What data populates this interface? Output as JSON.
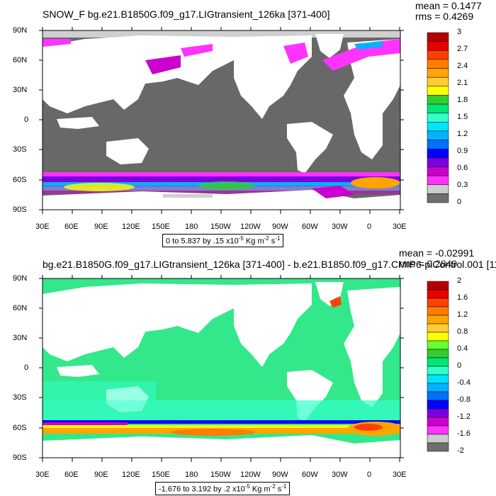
{
  "panels": [
    {
      "title": "SNOW_F bg.e21.B1850G.f09_g17.LIGtransient_126ka [371-400]",
      "mean_text": "mean = 0.1477",
      "rms_text": "rms = 0.4269",
      "range_text_prefix": "0 to 5.837 by .15 x10",
      "range_exp": "-5",
      "range_units": " Kg m",
      "range_units_exp1": "-2",
      "range_units_s": " s",
      "range_units_exp2": "-1",
      "colorbar_labels": [
        "3",
        "2.7",
        "2.4",
        "2.1",
        "1.8",
        "1.5",
        "1.2",
        "0.9",
        "0.6",
        "0.3",
        "0"
      ],
      "colorbar_colors": [
        "#b40000",
        "#e60000",
        "#ff4000",
        "#ff7d00",
        "#ffa500",
        "#ffcc33",
        "#ffff00",
        "#33cc33",
        "#00e676",
        "#33ffcc",
        "#00e5ff",
        "#00b2ff",
        "#0070ff",
        "#0000ff",
        "#7a00e0",
        "#cc00cc",
        "#ff33ff",
        "#cccccc",
        "#6e6e6e"
      ]
    },
    {
      "title": "bg.e21.B1850G.f09_g17.LIGtransient_126ka [371-400] - b.e21.B1850.f09_g17.CMIP6-piControl.001 [11",
      "mean_text": "mean = -0.02991",
      "rms_text": "rms = 0.2849",
      "range_text_prefix": "-1.676 to 3.192 by .2 x10",
      "range_exp": "-5",
      "range_units": " Kg m",
      "range_units_exp1": "-2",
      "range_units_s": " s",
      "range_units_exp2": "-1",
      "colorbar_labels": [
        "2",
        "1.6",
        "1.2",
        "0.8",
        "0.4",
        "0",
        "-0.4",
        "-0.8",
        "-1.2",
        "-1.6",
        "-2"
      ],
      "colorbar_colors": [
        "#b40000",
        "#e60000",
        "#ff4000",
        "#ff7d00",
        "#ffa500",
        "#ffcc33",
        "#ffff00",
        "#66ff33",
        "#33cc33",
        "#00e676",
        "#33ffcc",
        "#00e5ff",
        "#00b2ff",
        "#0070ff",
        "#0000ff",
        "#7a00e0",
        "#cc00cc",
        "#ff33ff",
        "#cccccc",
        "#6e6e6e"
      ]
    }
  ],
  "lat_labels": [
    "90N",
    "60N",
    "30N",
    "0",
    "30S",
    "60S",
    "90S"
  ],
  "lon_labels": [
    "30E",
    "60E",
    "90E",
    "120E",
    "150E",
    "180",
    "150W",
    "120W",
    "90W",
    "60W",
    "30W",
    "0",
    "30E"
  ],
  "colors": {
    "land": "#ffffff",
    "ocean_top": "#686868",
    "ocean_bottom": "#33e88a",
    "snow_bg": "#cfcfcf",
    "ocean_bottom_alt": "#00e5ff"
  }
}
